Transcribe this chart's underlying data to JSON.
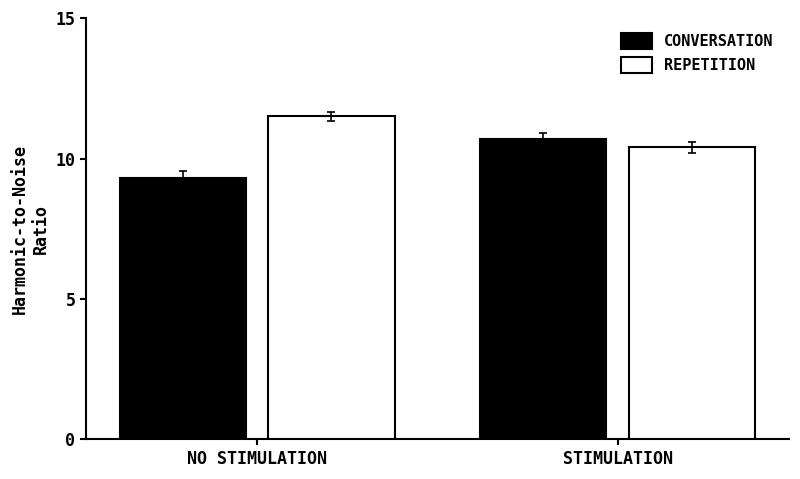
{
  "groups": [
    "NO STIMULATION",
    "STIMULATION"
  ],
  "conditions": [
    "CONVERSATION",
    "REPETITION"
  ],
  "values": [
    [
      9.3,
      11.5
    ],
    [
      10.7,
      10.4
    ]
  ],
  "errors": [
    [
      0.25,
      0.15
    ],
    [
      0.2,
      0.2
    ]
  ],
  "bar_colors": [
    "#000000",
    "#ffffff"
  ],
  "bar_edge_colors": [
    "#000000",
    "#000000"
  ],
  "ylabel_line1": "Harmonic-to-Noise",
  "ylabel_line2": "Ratio",
  "ylim": [
    0,
    15
  ],
  "yticks": [
    0,
    5,
    10,
    15
  ],
  "background_color": "#ffffff",
  "bar_width": 0.28,
  "legend_labels": [
    "CONVERSATION",
    "REPETITION"
  ],
  "tick_fontsize": 12,
  "label_fontsize": 12,
  "legend_fontsize": 11,
  "error_capsize": 3,
  "error_linewidth": 1.2,
  "group_centers": [
    0.38,
    1.18
  ],
  "bar_gap": 0.05
}
